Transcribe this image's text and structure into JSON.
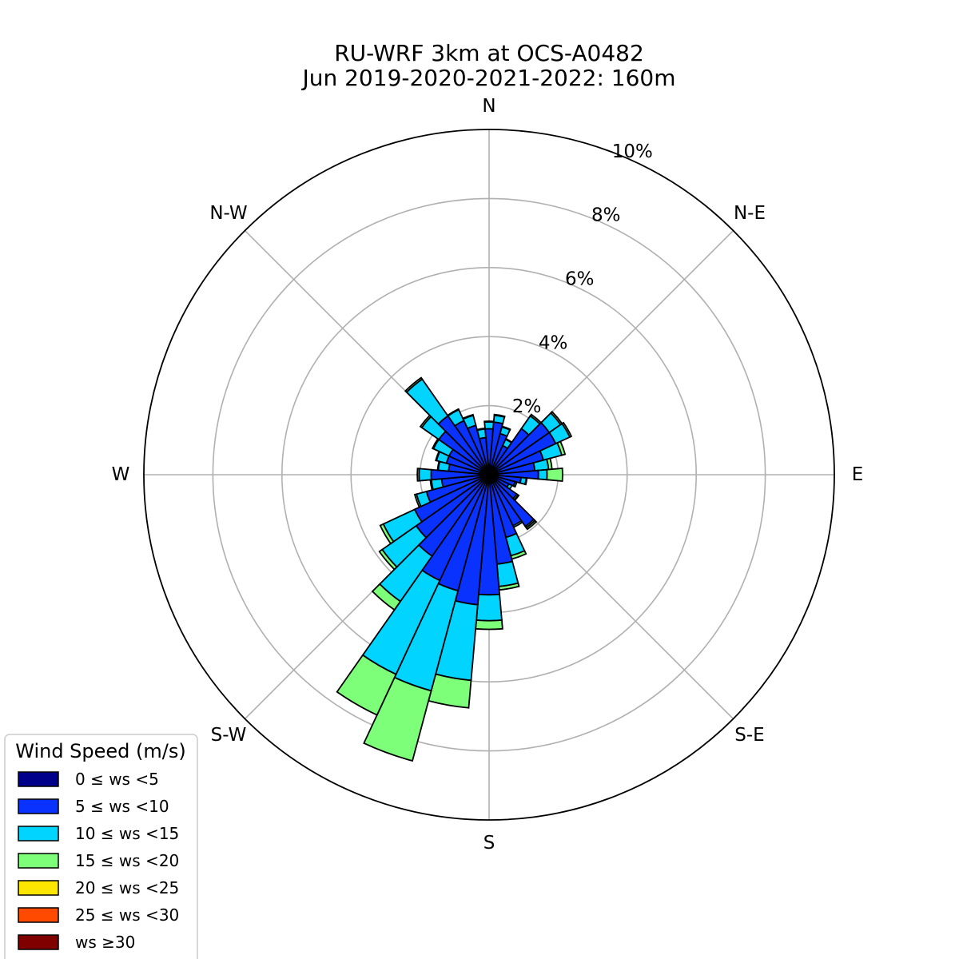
{
  "chart_data": {
    "type": "windrose",
    "title_line1": "RU-WRF 3km at OCS-A0482",
    "title_line2": "Jun 2019-2020-2021-2022: 160m",
    "directions": [
      "N",
      "N-E",
      "E",
      "S-E",
      "S",
      "S-W",
      "W",
      "N-W"
    ],
    "radial_ticks": [
      2,
      4,
      6,
      8,
      10
    ],
    "radial_tick_labels": [
      "2%",
      "4%",
      "6%",
      "8%",
      "10%"
    ],
    "rmax": 10,
    "sector_count": 36,
    "sector_width_deg": 10,
    "legend_title": "Wind Speed (m/s)",
    "bins": [
      {
        "label": "0 ≤  ws <5",
        "color": "#00008b"
      },
      {
        "label": "5 ≤  ws <10",
        "color": "#0a32ff"
      },
      {
        "label": "10 ≤  ws <15",
        "color": "#00d4ff"
      },
      {
        "label": "15 ≤  ws <20",
        "color": "#7dff7a"
      },
      {
        "label": "20 ≤  ws <25",
        "color": "#ffe600"
      },
      {
        "label": "25 ≤  ws <30",
        "color": "#ff4a00"
      },
      {
        "label": "ws  ≥30",
        "color": "#800000"
      }
    ],
    "sectors": [
      {
        "dir": 0,
        "values": [
          0.08,
          1.25,
          0.2,
          0.02,
          0,
          0,
          0
        ]
      },
      {
        "dir": 10,
        "values": [
          0.08,
          1.45,
          0.2,
          0.02,
          0,
          0,
          0
        ]
      },
      {
        "dir": 20,
        "values": [
          0.08,
          1.15,
          0.2,
          0.02,
          0,
          0,
          0
        ]
      },
      {
        "dir": 30,
        "values": [
          0.08,
          0.85,
          0.2,
          0.02,
          0,
          0,
          0
        ]
      },
      {
        "dir": 40,
        "values": [
          0.08,
          1.55,
          0.45,
          0.05,
          0,
          0,
          0
        ]
      },
      {
        "dir": 50,
        "values": [
          0.08,
          2.05,
          0.4,
          0.05,
          0,
          0,
          0
        ]
      },
      {
        "dir": 60,
        "values": [
          0.08,
          2.05,
          0.45,
          0.05,
          0,
          0,
          0
        ]
      },
      {
        "dir": 70,
        "values": [
          0.08,
          1.55,
          0.55,
          0.1,
          0,
          0,
          0
        ]
      },
      {
        "dir": 80,
        "values": [
          0.08,
          1.25,
          0.4,
          0.1,
          0,
          0,
          0
        ]
      },
      {
        "dir": 90,
        "values": [
          0.08,
          1.35,
          0.25,
          0.45,
          0,
          0,
          0
        ]
      },
      {
        "dir": 100,
        "values": [
          0.08,
          0.85,
          0.15,
          0.02,
          0,
          0,
          0
        ]
      },
      {
        "dir": 110,
        "values": [
          0.08,
          0.7,
          0.05,
          0.0,
          0,
          0,
          0
        ]
      },
      {
        "dir": 120,
        "values": [
          0.08,
          0.55,
          0.1,
          0.0,
          0,
          0,
          0
        ]
      },
      {
        "dir": 130,
        "values": [
          0.08,
          0.9,
          0.05,
          0.02,
          0,
          0,
          0
        ]
      },
      {
        "dir": 140,
        "values": [
          0.08,
          1.75,
          0.05,
          0.05,
          0,
          0,
          0
        ]
      },
      {
        "dir": 150,
        "values": [
          0.08,
          1.55,
          0.05,
          0.0,
          0,
          0,
          0
        ]
      },
      {
        "dir": 160,
        "values": [
          0.08,
          1.8,
          0.55,
          0.1,
          0,
          0,
          0
        ]
      },
      {
        "dir": 170,
        "values": [
          0.08,
          2.52,
          0.65,
          0.1,
          0,
          0,
          0
        ]
      },
      {
        "dir": 180,
        "values": [
          0.08,
          3.4,
          0.75,
          0.25,
          0,
          0,
          0
        ]
      },
      {
        "dir": 190,
        "values": [
          0.08,
          3.7,
          2.2,
          0.8,
          0,
          0,
          0
        ]
      },
      {
        "dir": 200,
        "values": [
          0.08,
          3.4,
          3.0,
          2.1,
          0,
          0,
          0
        ]
      },
      {
        "dir": 210,
        "values": [
          0.08,
          3.3,
          3.0,
          1.3,
          0,
          0,
          0
        ]
      },
      {
        "dir": 220,
        "values": [
          0.08,
          2.8,
          1.6,
          0.3,
          0,
          0,
          0
        ]
      },
      {
        "dir": 230,
        "values": [
          0.08,
          2.5,
          1.2,
          0.1,
          0,
          0,
          0
        ]
      },
      {
        "dir": 240,
        "values": [
          0.08,
          2.3,
          1.0,
          0.1,
          0,
          0,
          0
        ]
      },
      {
        "dir": 250,
        "values": [
          0.08,
          1.8,
          0.3,
          0.05,
          0,
          0,
          0
        ]
      },
      {
        "dir": 260,
        "values": [
          0.08,
          1.3,
          0.3,
          0.03,
          0,
          0,
          0
        ]
      },
      {
        "dir": 270,
        "values": [
          0.08,
          1.6,
          0.35,
          0.05,
          0,
          0,
          0
        ]
      },
      {
        "dir": 280,
        "values": [
          0.08,
          1.1,
          0.3,
          0.02,
          0,
          0,
          0
        ]
      },
      {
        "dir": 290,
        "values": [
          0.08,
          1.2,
          0.3,
          0.02,
          0,
          0,
          0
        ]
      },
      {
        "dir": 300,
        "values": [
          0.08,
          1.2,
          0.5,
          0.03,
          0,
          0,
          0
        ]
      },
      {
        "dir": 310,
        "values": [
          0.08,
          1.7,
          0.6,
          0.05,
          0,
          0,
          0
        ]
      },
      {
        "dir": 320,
        "values": [
          0.08,
          2.0,
          1.3,
          0.05,
          0,
          0,
          0
        ]
      },
      {
        "dir": 330,
        "values": [
          0.08,
          1.65,
          0.35,
          0.02,
          0,
          0,
          0
        ]
      },
      {
        "dir": 340,
        "values": [
          0.08,
          1.4,
          0.3,
          0.02,
          0,
          0,
          0
        ]
      },
      {
        "dir": 350,
        "values": [
          0.08,
          1.0,
          0.25,
          0.02,
          0,
          0,
          0
        ]
      }
    ]
  }
}
